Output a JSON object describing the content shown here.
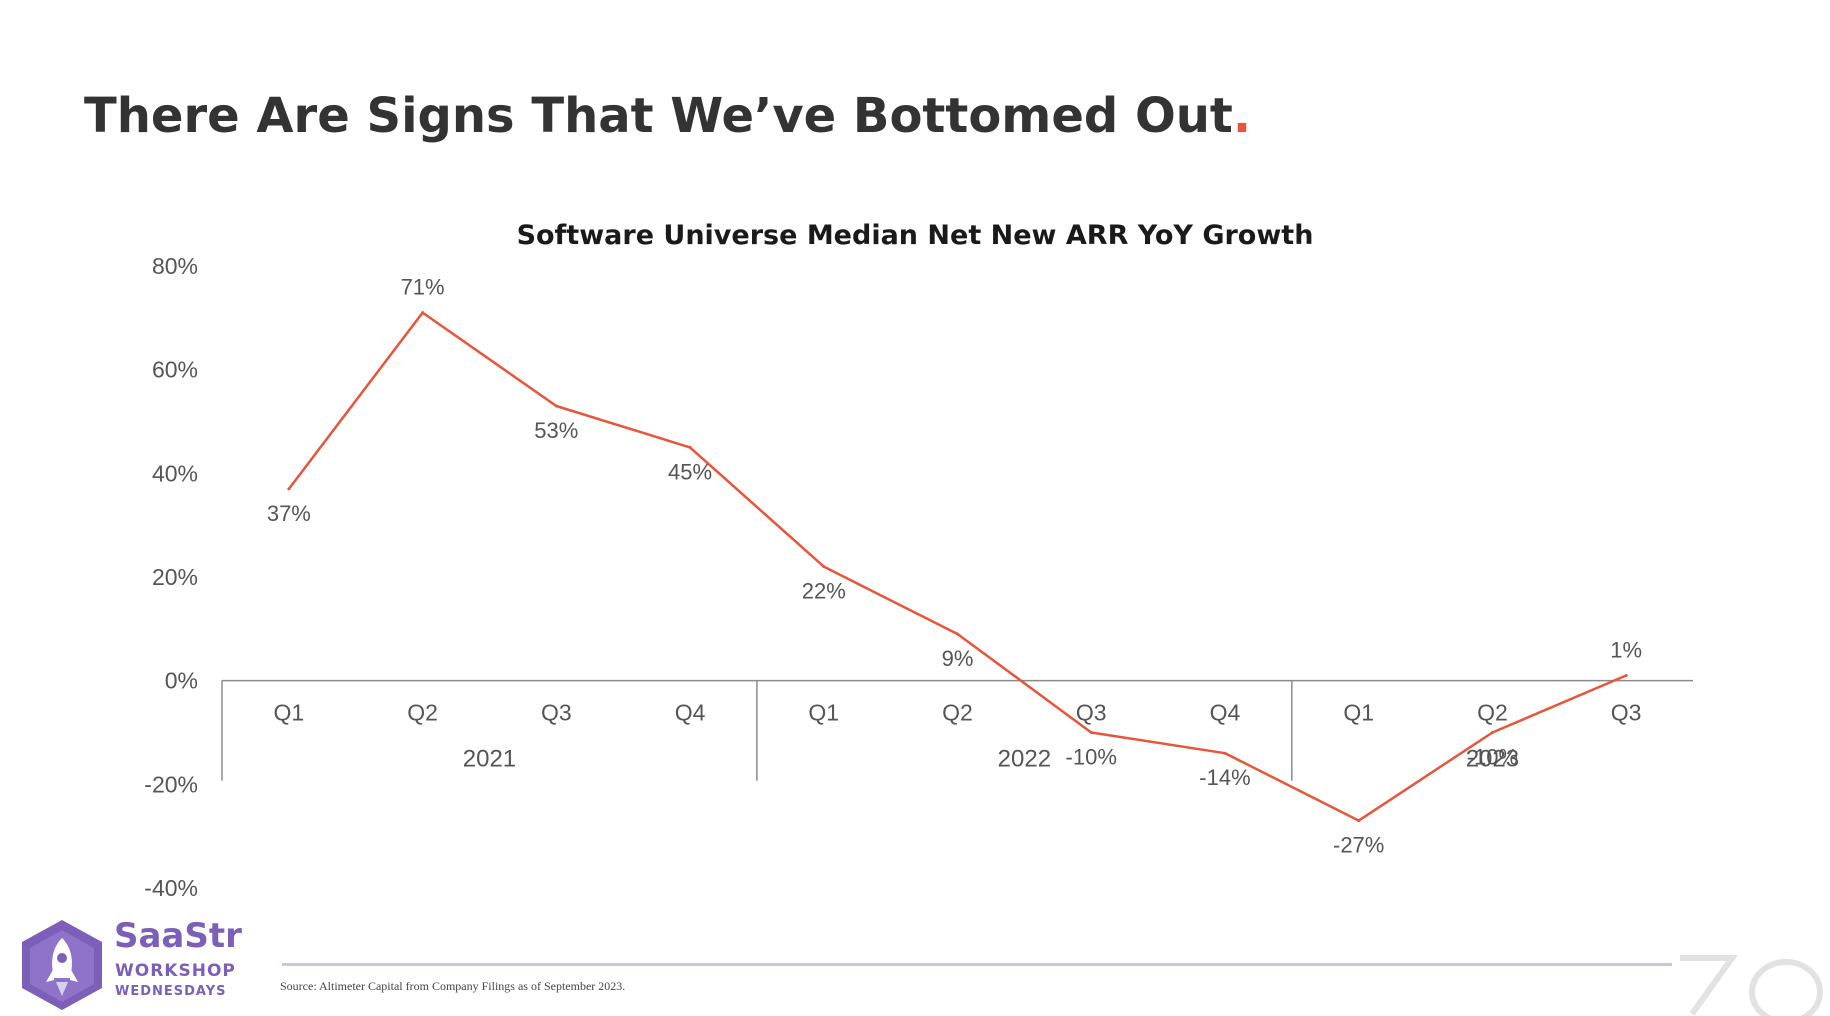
{
  "slide": {
    "title": "There Are Signs That We’ve Bottomed Out",
    "title_punct": "."
  },
  "chart_data": {
    "type": "line",
    "title": "Software Universe Median Net New ARR YoY Growth",
    "xlabel": "",
    "ylabel": "",
    "ylim": [
      -40,
      80
    ],
    "yticks": [
      80,
      60,
      40,
      20,
      0,
      -20,
      -40
    ],
    "ytick_labels": [
      "80%",
      "60%",
      "40%",
      "20%",
      "0%",
      "-20%",
      "-40%"
    ],
    "categories": [
      "Q1",
      "Q2",
      "Q3",
      "Q4",
      "Q1",
      "Q2",
      "Q3",
      "Q4",
      "Q1",
      "Q2",
      "Q3"
    ],
    "groups": [
      {
        "label": "2021",
        "count": 4
      },
      {
        "label": "2022",
        "count": 4
      },
      {
        "label": "2023",
        "count": 3
      }
    ],
    "series": [
      {
        "values": [
          37,
          71,
          53,
          45,
          22,
          9,
          -10,
          -14,
          -27,
          -10,
          1
        ],
        "labels": [
          "37%",
          "71%",
          "53%",
          "45%",
          "22%",
          "9%",
          "-10%",
          "-14%",
          "-27%",
          "-10%",
          "1%"
        ],
        "color": "#e8553a"
      }
    ],
    "grid": false,
    "legend": "none"
  },
  "footer": {
    "source": "Source: Altimeter Capital from Company Filings as of September 2023."
  },
  "logo": {
    "name": "SaaStr",
    "line2": "WORKSHOP",
    "line3": "WEDNESDAYS",
    "icon": "rocket-icon",
    "color": "#7b5fb8"
  }
}
